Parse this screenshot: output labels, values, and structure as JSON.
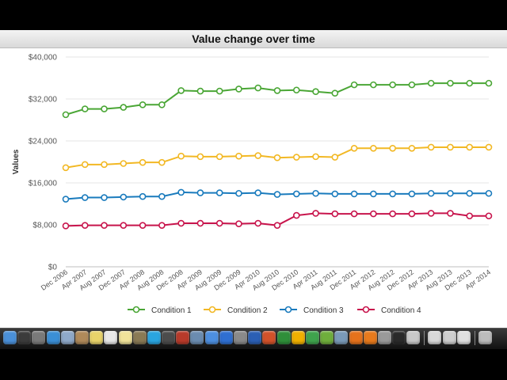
{
  "chart_data": {
    "type": "line",
    "title": "Value change over time",
    "xlabel": "",
    "ylabel": "Values",
    "ylim": [
      0,
      40000
    ],
    "y_ticks": [
      0,
      8000,
      16000,
      24000,
      32000,
      40000
    ],
    "y_tick_labels": [
      "$0",
      "$8,000",
      "$16,000",
      "$24,000",
      "$32,000",
      "$40,000"
    ],
    "grid": true,
    "legend_position": "bottom-center",
    "categories": [
      "Dec 2006",
      "Apr 2007",
      "Aug 2007",
      "Dec 2007",
      "Apr 2008",
      "Aug 2008",
      "Dec 2008",
      "Apr 2009",
      "Aug 2009",
      "Dec 2009",
      "Apr 2010",
      "Aug 2010",
      "Dec 2010",
      "Apr 2011",
      "Aug 2011",
      "Dec 2011",
      "Apr 2012",
      "Aug 2012",
      "Dec 2012",
      "Apr 2013",
      "Aug 2013",
      "Dec 2013",
      "Apr 2014"
    ],
    "series": [
      {
        "name": "Condition 1",
        "color": "#4aa635",
        "values": [
          29000,
          30100,
          30100,
          30400,
          30900,
          30900,
          33600,
          33500,
          33500,
          33900,
          34100,
          33600,
          33700,
          33400,
          33100,
          34700,
          34700,
          34700,
          34700,
          35000,
          35000,
          35000,
          35000
        ]
      },
      {
        "name": "Condition 2",
        "color": "#f2b824",
        "values": [
          18900,
          19500,
          19500,
          19700,
          19900,
          19900,
          21100,
          21000,
          21000,
          21100,
          21200,
          20800,
          20900,
          21000,
          20900,
          22600,
          22600,
          22600,
          22600,
          22800,
          22800,
          22800,
          22800
        ]
      },
      {
        "name": "Condition 3",
        "color": "#1a7bbd",
        "values": [
          12900,
          13200,
          13200,
          13300,
          13400,
          13400,
          14200,
          14100,
          14100,
          14000,
          14100,
          13800,
          13900,
          14000,
          13900,
          13900,
          13900,
          13900,
          13900,
          14000,
          14000,
          14000,
          14000
        ]
      },
      {
        "name": "Condition 4",
        "color": "#c8144c",
        "values": [
          7800,
          7900,
          7900,
          7900,
          7900,
          7900,
          8300,
          8300,
          8300,
          8200,
          8300,
          7900,
          9800,
          10200,
          10100,
          10100,
          10100,
          10100,
          10100,
          10200,
          10200,
          9700,
          9700
        ]
      }
    ]
  },
  "dock": {
    "icons": [
      {
        "name": "finder-icon",
        "color": "#4a90d9"
      },
      {
        "name": "dashboard-icon",
        "color": "#3b3b3b"
      },
      {
        "name": "launchpad-icon",
        "color": "#7a7a7a"
      },
      {
        "name": "safari-icon",
        "color": "#3b8fd6"
      },
      {
        "name": "mail-icon",
        "color": "#8fa9c9"
      },
      {
        "name": "address-book-icon",
        "color": "#b08a5a"
      },
      {
        "name": "stickies-icon",
        "color": "#e8d36a"
      },
      {
        "name": "calendar-icon",
        "color": "#e8e8e8"
      },
      {
        "name": "notes-icon",
        "color": "#f1e39a"
      },
      {
        "name": "preview-icon",
        "color": "#8a7a55"
      },
      {
        "name": "skype-icon",
        "color": "#2aa5e0"
      },
      {
        "name": "facetime-icon",
        "color": "#4c4c4c"
      },
      {
        "name": "photo-booth-icon",
        "color": "#b83a2a"
      },
      {
        "name": "iphoto-icon",
        "color": "#6b8cb0"
      },
      {
        "name": "itunes-icon",
        "color": "#4d8fe0"
      },
      {
        "name": "app-store-icon",
        "color": "#2f6fd1"
      },
      {
        "name": "system-prefs-icon",
        "color": "#8a8a8a"
      },
      {
        "name": "word-icon",
        "color": "#2b5fb4"
      },
      {
        "name": "powerpoint-icon",
        "color": "#d2522a"
      },
      {
        "name": "excel-icon",
        "color": "#2f8f3a"
      },
      {
        "name": "outlook-icon",
        "color": "#f0b000"
      },
      {
        "name": "messenger-icon",
        "color": "#3fa34d"
      },
      {
        "name": "adium-icon",
        "color": "#6fae3c"
      },
      {
        "name": "utility-icon",
        "color": "#7a9ab8"
      },
      {
        "name": "firefox-icon",
        "color": "#e5721c"
      },
      {
        "name": "vlc-icon",
        "color": "#e87a1c"
      },
      {
        "name": "folder-icon",
        "color": "#9a9a9a"
      },
      {
        "name": "activity-monitor-icon",
        "color": "#2a2a2a"
      },
      {
        "name": "document-icon-1",
        "color": "#c8c8c8"
      },
      {
        "name": "document-icon-2",
        "color": "#d8d8d8"
      },
      {
        "name": "document-icon-3",
        "color": "#cfcfcf"
      },
      {
        "name": "document-icon-4",
        "color": "#e0e0e0"
      },
      {
        "name": "trash-icon",
        "color": "#bcbcbc"
      }
    ]
  }
}
